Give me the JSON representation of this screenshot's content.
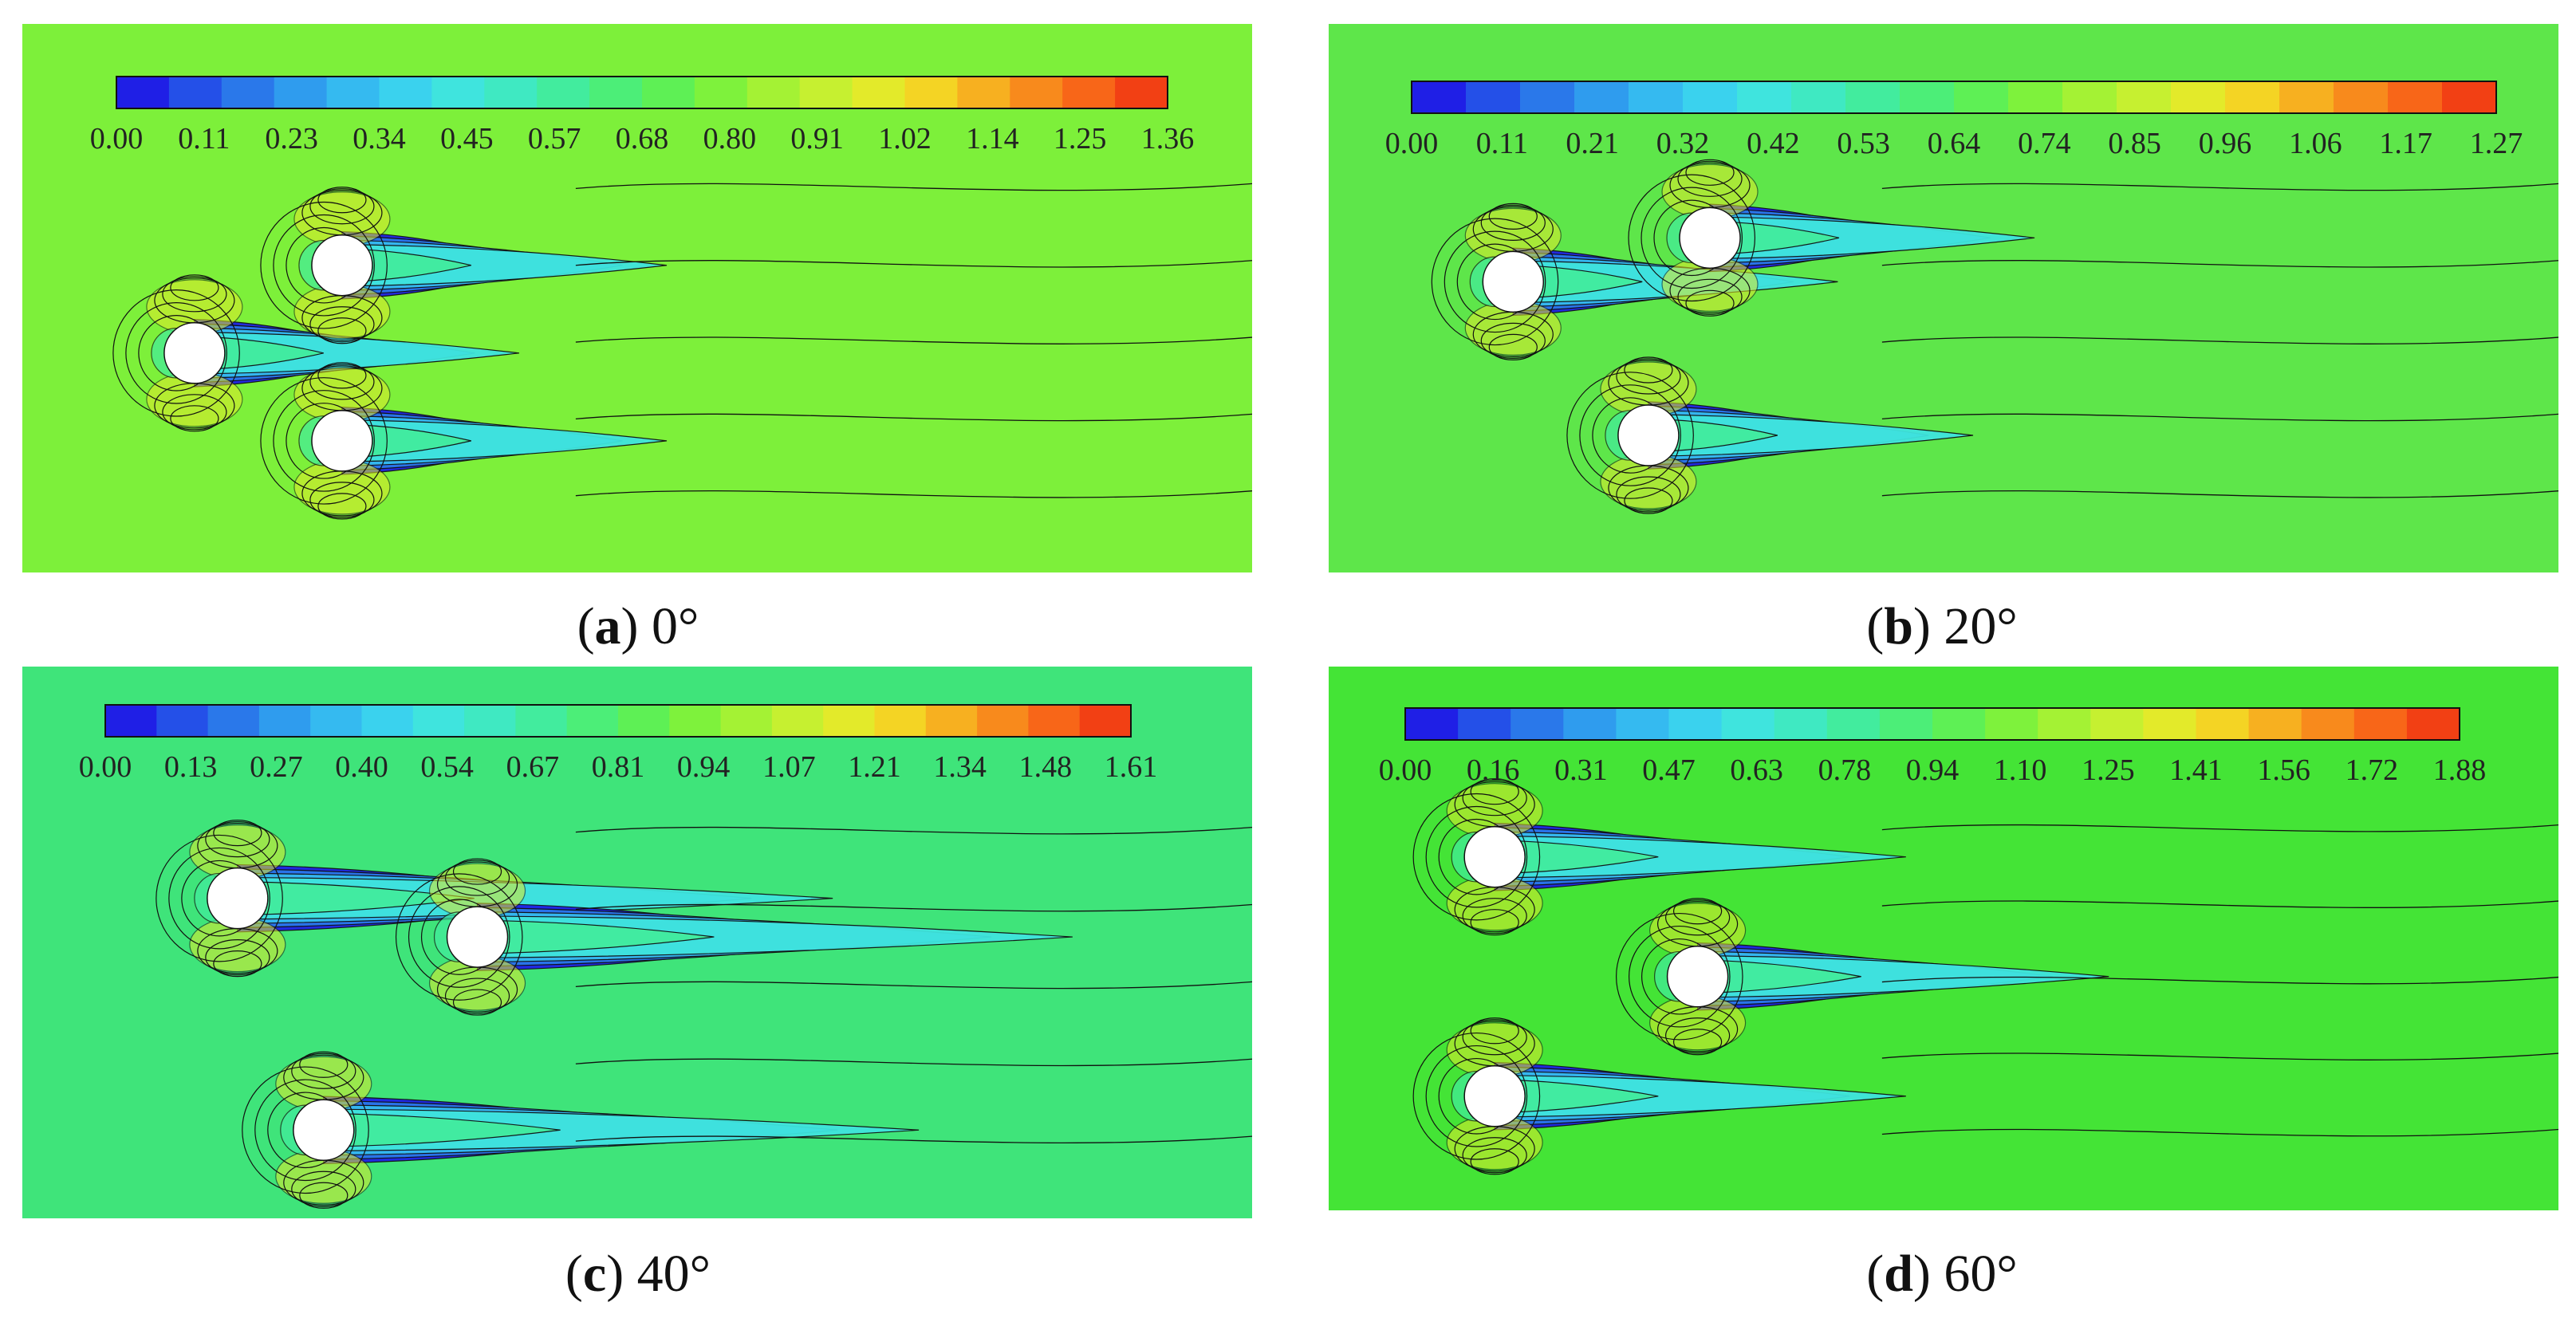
{
  "figure": {
    "panels": [
      {
        "id": "a",
        "letter": "a",
        "angle": "0°",
        "colorbar_ticks": [
          "0.00",
          "0.11",
          "0.23",
          "0.34",
          "0.45",
          "0.57",
          "0.68",
          "0.80",
          "0.91",
          "1.02",
          "1.14",
          "1.25",
          "1.36"
        ],
        "cylinders": [
          [
            0.14,
            0.6
          ],
          [
            0.26,
            0.44
          ],
          [
            0.26,
            0.76
          ]
        ]
      },
      {
        "id": "b",
        "letter": "b",
        "angle": "20°",
        "colorbar_ticks": [
          "0.00",
          "0.11",
          "0.21",
          "0.32",
          "0.42",
          "0.53",
          "0.64",
          "0.74",
          "0.85",
          "0.96",
          "1.06",
          "1.17",
          "1.27"
        ],
        "cylinders": [
          [
            0.15,
            0.47
          ],
          [
            0.31,
            0.39
          ],
          [
            0.26,
            0.75
          ]
        ]
      },
      {
        "id": "c",
        "letter": "c",
        "angle": "40°",
        "colorbar_ticks": [
          "0.00",
          "0.13",
          "0.27",
          "0.40",
          "0.54",
          "0.67",
          "0.81",
          "0.94",
          "1.07",
          "1.21",
          "1.34",
          "1.48",
          "1.61"
        ],
        "cylinders": [
          [
            0.175,
            0.42
          ],
          [
            0.37,
            0.49
          ],
          [
            0.245,
            0.84
          ]
        ]
      },
      {
        "id": "d",
        "letter": "d",
        "angle": "60°",
        "colorbar_ticks": [
          "0.00",
          "0.16",
          "0.31",
          "0.47",
          "0.63",
          "0.78",
          "0.94",
          "1.10",
          "1.25",
          "1.41",
          "1.56",
          "1.72",
          "1.88"
        ],
        "cylinders": [
          [
            0.135,
            0.35
          ],
          [
            0.3,
            0.57
          ],
          [
            0.135,
            0.79
          ]
        ]
      }
    ],
    "colors": {
      "colormap": [
        "#1f1fe6",
        "#2450e8",
        "#2a78ea",
        "#2f9cee",
        "#35baf0",
        "#3ad2ee",
        "#3fe4de",
        "#3fe9c2",
        "#42ec9e",
        "#4cee78",
        "#5ef055",
        "#7ef23c",
        "#a4f234",
        "#c6f030",
        "#e3ea2a",
        "#f4d424",
        "#f7b020",
        "#f88a1c",
        "#f86618",
        "#f24014"
      ],
      "background_a": "#7df03a",
      "background_b": "#5ee64a",
      "background_c": "#3fe47a",
      "background_d": "#44e436",
      "cylinder": "#ffffff",
      "contour": "#111111"
    }
  }
}
